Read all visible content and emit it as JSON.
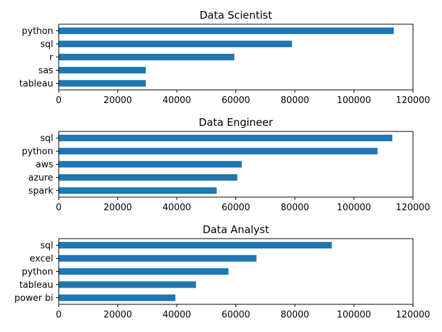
{
  "chart_data": [
    {
      "type": "bar",
      "orientation": "horizontal",
      "title": "Data Scientist",
      "categories": [
        "python",
        "sql",
        "r",
        "sas",
        "tableau"
      ],
      "values": [
        113500,
        79000,
        59500,
        29500,
        29500
      ],
      "xlim": [
        0,
        120000
      ],
      "xticks": [
        "0",
        "20000",
        "40000",
        "60000",
        "80000",
        "100000",
        "120000"
      ],
      "color": "#1f77b4",
      "grid": false,
      "legend": "none"
    },
    {
      "type": "bar",
      "orientation": "horizontal",
      "title": "Data Engineer",
      "categories": [
        "sql",
        "python",
        "aws",
        "azure",
        "spark"
      ],
      "values": [
        113000,
        108000,
        62000,
        60500,
        53500
      ],
      "xlim": [
        0,
        120000
      ],
      "xticks": [
        "0",
        "20000",
        "40000",
        "60000",
        "80000",
        "100000",
        "120000"
      ],
      "color": "#1f77b4",
      "grid": false,
      "legend": "none"
    },
    {
      "type": "bar",
      "orientation": "horizontal",
      "title": "Data Analyst",
      "categories": [
        "sql",
        "excel",
        "python",
        "tableau",
        "power bi"
      ],
      "values": [
        92500,
        67000,
        57500,
        46500,
        39500
      ],
      "xlim": [
        0,
        120000
      ],
      "xticks": [
        "0",
        "20000",
        "40000",
        "60000",
        "80000",
        "100000",
        "120000"
      ],
      "color": "#1f77b4",
      "grid": false,
      "legend": "none"
    }
  ]
}
